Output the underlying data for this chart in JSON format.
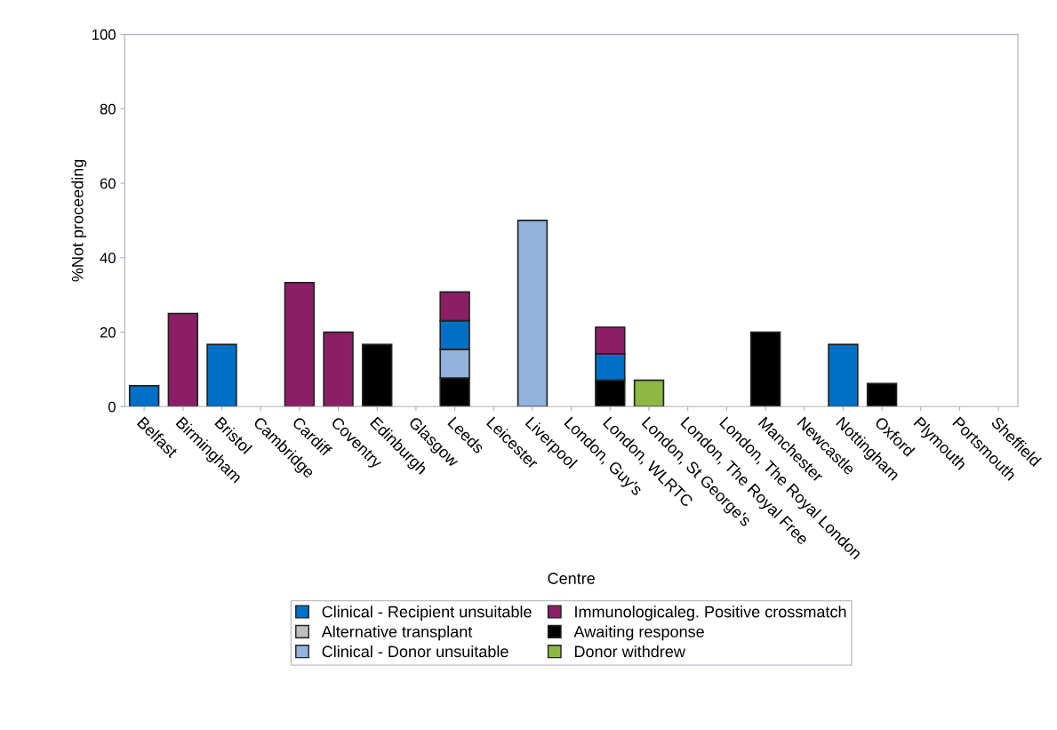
{
  "chart_data": {
    "type": "bar",
    "stacked": true,
    "xlabel": "Centre",
    "ylabel": "%Not proceeding",
    "categories": [
      "Belfast",
      "Birmingham",
      "Bristol",
      "Cambridge",
      "Cardiff",
      "Coventry",
      "Edinburgh",
      "Glasgow",
      "Leeds",
      "Leicester",
      "Liverpool",
      "London, Guy's",
      "London, WLRTC",
      "London, St George's",
      "London, The Royal Free",
      "London, The Royal London",
      "Manchester",
      "Newcastle",
      "Nottingham",
      "Oxford",
      "Plymouth",
      "Portsmouth",
      "Sheffield"
    ],
    "series": [
      {
        "name": "Awaiting response",
        "color": "#000000",
        "values": [
          0,
          0,
          0,
          0,
          0,
          0,
          16.7,
          0,
          7.7,
          0,
          0,
          0,
          7.1,
          0,
          0,
          0,
          20,
          0,
          0,
          6.2,
          0,
          0,
          0
        ]
      },
      {
        "name": "Clinical - Donor unsuitable",
        "color": "#94b2de",
        "values": [
          0,
          0,
          0,
          0,
          0,
          0,
          0,
          0,
          7.7,
          0,
          50,
          0,
          0,
          0,
          0,
          0,
          0,
          0,
          0,
          0,
          0,
          0,
          0
        ]
      },
      {
        "name": "Clinical - Recipient unsuitable",
        "color": "#0070c6",
        "values": [
          5.6,
          0,
          16.7,
          0,
          0,
          0,
          0,
          0,
          7.7,
          0,
          0,
          0,
          7.1,
          0,
          0,
          0,
          0,
          0,
          16.7,
          0,
          0,
          0,
          0
        ]
      },
      {
        "name": "Immunologicaleg. Positive crossmatch",
        "color": "#8b1f65",
        "values": [
          0,
          25,
          0,
          0,
          33.3,
          20,
          0,
          0,
          7.7,
          0,
          0,
          0,
          7.1,
          0,
          0,
          0,
          0,
          0,
          0,
          0,
          0,
          0,
          0
        ]
      },
      {
        "name": "Alternative transplant",
        "color": "#bfbfbf",
        "values": [
          0,
          0,
          0,
          0,
          0,
          0,
          0,
          0,
          0,
          0,
          0,
          0,
          0,
          0,
          0,
          0,
          0,
          0,
          0,
          0,
          0,
          0,
          0
        ]
      },
      {
        "name": "Donor withdrew",
        "color": "#8cb843",
        "values": [
          0,
          0,
          0,
          0,
          0,
          0,
          0,
          0,
          0,
          0,
          0,
          0,
          0,
          7.1,
          0,
          0,
          0,
          0,
          0,
          0,
          0,
          0,
          0
        ]
      }
    ],
    "ylim": [
      0,
      100
    ],
    "yticks": [
      0,
      20,
      40,
      60,
      80,
      100
    ],
    "grid": false,
    "legend": "bottom"
  }
}
